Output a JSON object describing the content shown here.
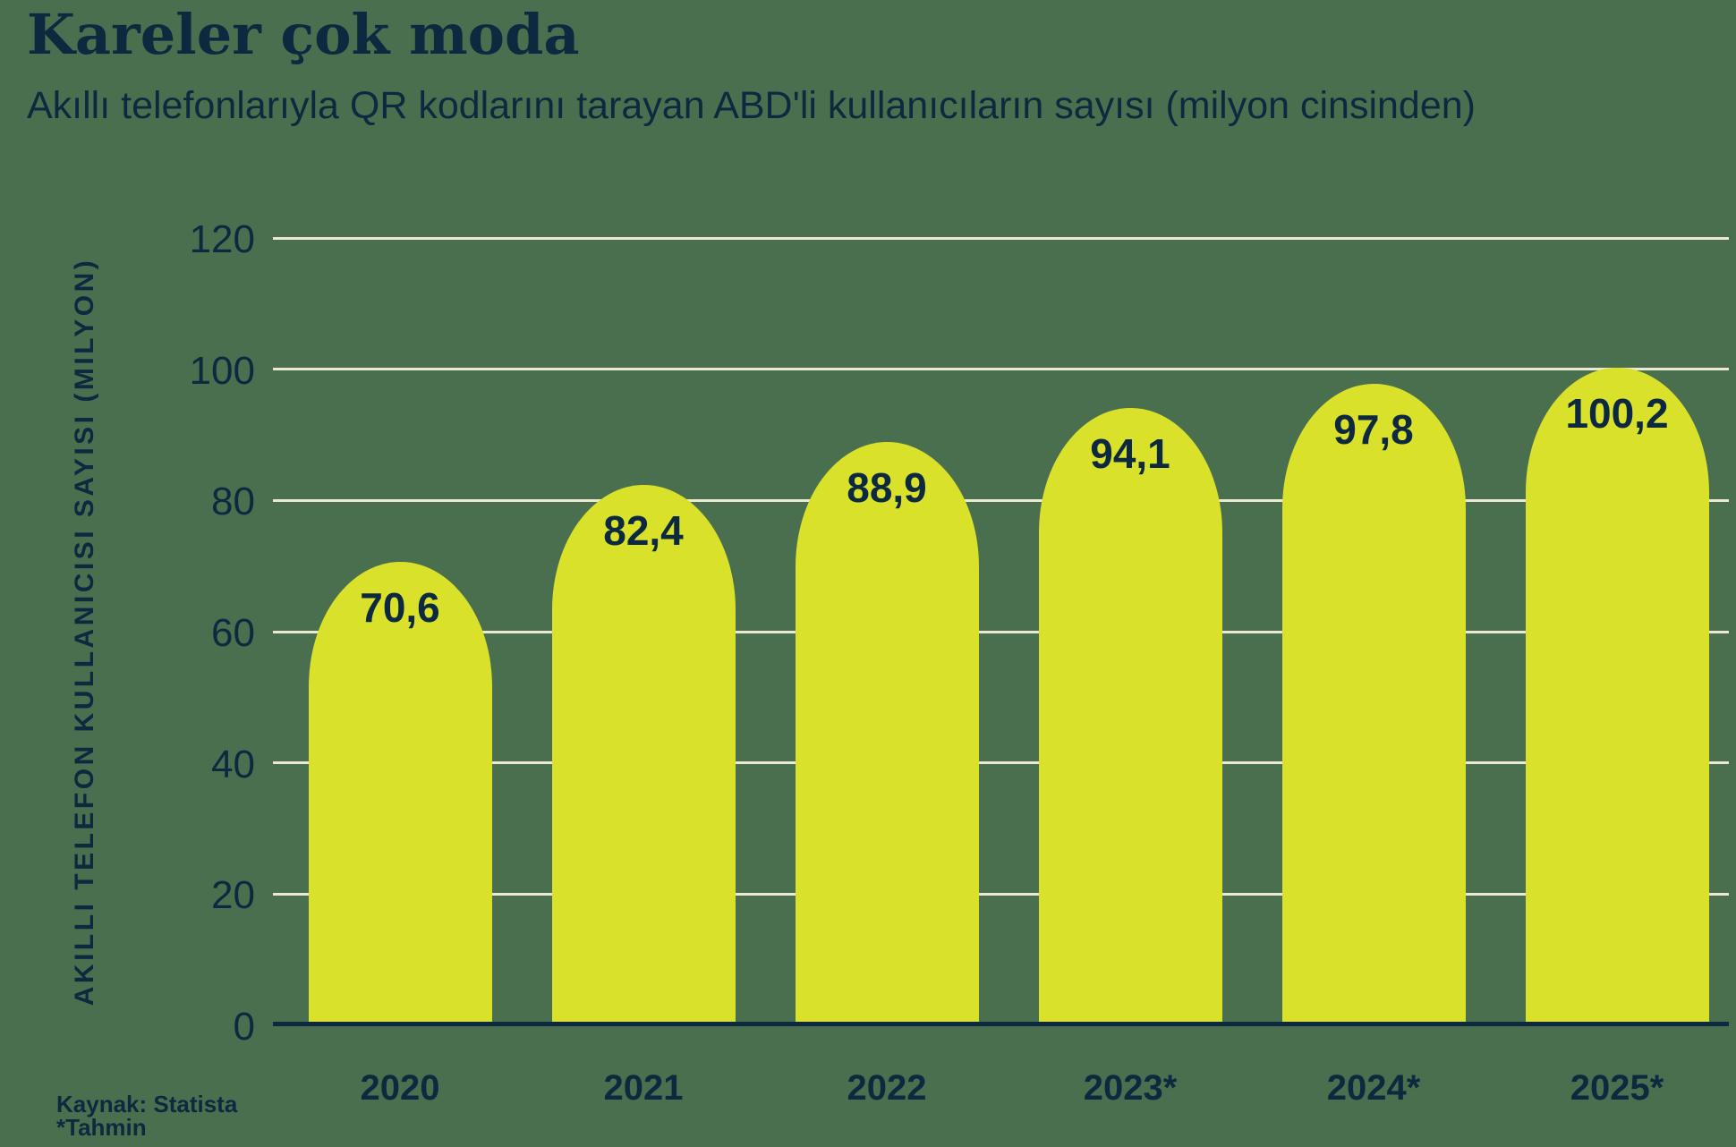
{
  "page": {
    "title": "Kareler çok moda",
    "subtitle": "Akıllı telefonlarıyla QR kodlarını tarayan ABD'li kullanıcıların sayısı (milyon cinsinden)",
    "source_line1": "Kaynak: Statista",
    "source_line2": "*Tahmin"
  },
  "colors": {
    "background": "#4A6F4E",
    "bar": "#D9E12B",
    "gridline": "#EDE9D0",
    "text": "#0D2940"
  },
  "chart_data": {
    "type": "bar",
    "title": "Kareler çok moda",
    "subtitle": "Akıllı telefonlarıyla QR kodlarını tarayan ABD'li kullanıcıların sayısı (milyon cinsinden)",
    "categories": [
      "2020",
      "2021",
      "2022",
      "2023*",
      "2024*",
      "2025*"
    ],
    "values": [
      70.6,
      82.4,
      88.9,
      94.1,
      97.8,
      100.2
    ],
    "value_labels": [
      "70,6",
      "82,4",
      "88,9",
      "94,1",
      "97,8",
      "100,2"
    ],
    "ylabel": "AKILLI TELEFON KULLANICISI SAYISI (MILYON)",
    "xlabel": "",
    "ylim": [
      0,
      120
    ],
    "yticks": [
      0,
      20,
      40,
      60,
      80,
      100,
      120
    ],
    "grid": true,
    "gridline_values": [
      20,
      40,
      60,
      80,
      100,
      120
    ],
    "legend": false,
    "bar_corner": "rounded-top",
    "source": "Kaynak: Statista",
    "footnote": "*Tahmin"
  }
}
